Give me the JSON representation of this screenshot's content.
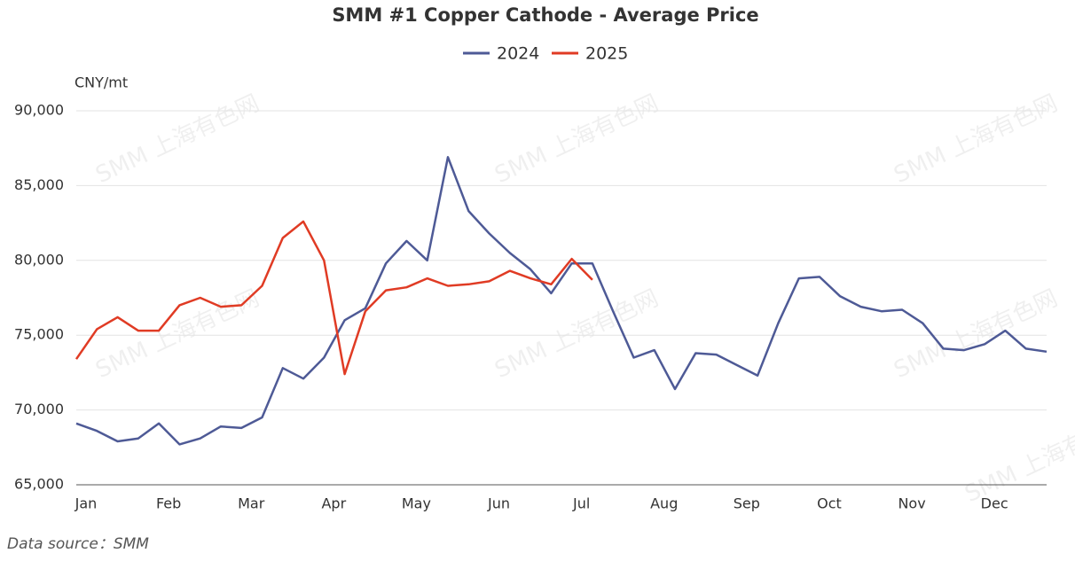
{
  "chart_data": {
    "type": "line",
    "title": "SMM #1 Copper Cathode - Average Price",
    "y_label": "CNY/mt",
    "source": "Data source：SMM",
    "watermark": "SMM 上海有色网",
    "categories": [
      "Jan",
      null,
      null,
      null,
      "Feb",
      null,
      null,
      null,
      "Mar",
      null,
      null,
      null,
      "Apr",
      null,
      null,
      null,
      "May",
      null,
      null,
      null,
      "Jun",
      null,
      null,
      null,
      "Jul",
      null,
      null,
      null,
      "Aug",
      null,
      null,
      null,
      "Sep",
      null,
      null,
      null,
      "Oct",
      null,
      null,
      null,
      "Nov",
      null,
      null,
      null,
      "Dec",
      null,
      null,
      null
    ],
    "series": [
      {
        "name": "2024",
        "color": "#4e5a96",
        "values": [
          69100,
          68600,
          67900,
          68100,
          69100,
          67700,
          68100,
          68900,
          68800,
          69500,
          72800,
          72100,
          73500,
          76000,
          76800,
          79800,
          81300,
          80000,
          86900,
          83300,
          81800,
          80500,
          79400,
          77800,
          79800,
          79800,
          76600,
          73500,
          74000,
          71400,
          73800,
          73700,
          73000,
          72300,
          75800,
          78800,
          78900,
          77600,
          76900,
          76600,
          76700,
          75800,
          74100,
          74000,
          74400,
          75300,
          74100,
          73900
        ]
      },
      {
        "name": "2025",
        "color": "#e03b24",
        "values": [
          73400,
          75400,
          76200,
          75300,
          75300,
          77000,
          77500,
          76900,
          77000,
          78300,
          81500,
          82600,
          80000,
          72400,
          76600,
          78000,
          78200,
          78800,
          78300,
          78400,
          78600,
          79300,
          78800,
          78400,
          80100,
          78700,
          null,
          null,
          null,
          null,
          null,
          null,
          null,
          null,
          null,
          null,
          null,
          null,
          null,
          null,
          null,
          null,
          null,
          null,
          null,
          null,
          null,
          null
        ]
      }
    ],
    "ylim": [
      65000,
      90000
    ],
    "yticks": [
      {
        "value": 65000,
        "label": "65,000"
      },
      {
        "value": 70000,
        "label": "70,000"
      },
      {
        "value": 75000,
        "label": "75,000"
      },
      {
        "value": 80000,
        "label": "80,000"
      },
      {
        "value": 85000,
        "label": "85,000"
      },
      {
        "value": 90000,
        "label": "90,000"
      }
    ],
    "grid": true,
    "legend": "top"
  }
}
